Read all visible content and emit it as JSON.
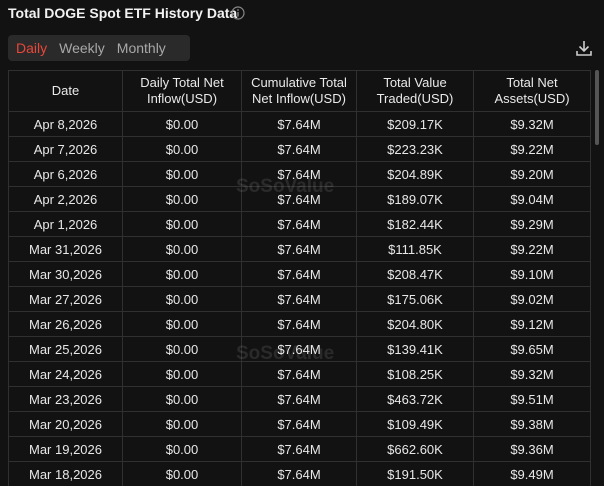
{
  "header": {
    "title": "Total DOGE Spot ETF History Data",
    "tabs": [
      "Daily",
      "Weekly",
      "Monthly"
    ]
  },
  "watermark": "SoSoValue",
  "table": {
    "columns": [
      "Date",
      "Daily Total Net\nInflow(USD)",
      "Cumulative Total\nNet Inflow(USD)",
      "Total Value\nTraded(USD)",
      "Total Net\nAssets(USD)"
    ],
    "rows": [
      [
        "Apr 8,2026",
        "$0.00",
        "$7.64M",
        "$209.17K",
        "$9.32M"
      ],
      [
        "Apr 7,2026",
        "$0.00",
        "$7.64M",
        "$223.23K",
        "$9.22M"
      ],
      [
        "Apr 6,2026",
        "$0.00",
        "$7.64M",
        "$204.89K",
        "$9.20M"
      ],
      [
        "Apr 2,2026",
        "$0.00",
        "$7.64M",
        "$189.07K",
        "$9.04M"
      ],
      [
        "Apr 1,2026",
        "$0.00",
        "$7.64M",
        "$182.44K",
        "$9.29M"
      ],
      [
        "Mar 31,2026",
        "$0.00",
        "$7.64M",
        "$111.85K",
        "$9.22M"
      ],
      [
        "Mar 30,2026",
        "$0.00",
        "$7.64M",
        "$208.47K",
        "$9.10M"
      ],
      [
        "Mar 27,2026",
        "$0.00",
        "$7.64M",
        "$175.06K",
        "$9.02M"
      ],
      [
        "Mar 26,2026",
        "$0.00",
        "$7.64M",
        "$204.80K",
        "$9.12M"
      ],
      [
        "Mar 25,2026",
        "$0.00",
        "$7.64M",
        "$139.41K",
        "$9.65M"
      ],
      [
        "Mar 24,2026",
        "$0.00",
        "$7.64M",
        "$108.25K",
        "$9.32M"
      ],
      [
        "Mar 23,2026",
        "$0.00",
        "$7.64M",
        "$463.72K",
        "$9.51M"
      ],
      [
        "Mar 20,2026",
        "$0.00",
        "$7.64M",
        "$109.49K",
        "$9.38M"
      ],
      [
        "Mar 19,2026",
        "$0.00",
        "$7.64M",
        "$662.60K",
        "$9.36M"
      ],
      [
        "Mar 18,2026",
        "$0.00",
        "$7.64M",
        "$191.50K",
        "$9.49M"
      ]
    ]
  }
}
